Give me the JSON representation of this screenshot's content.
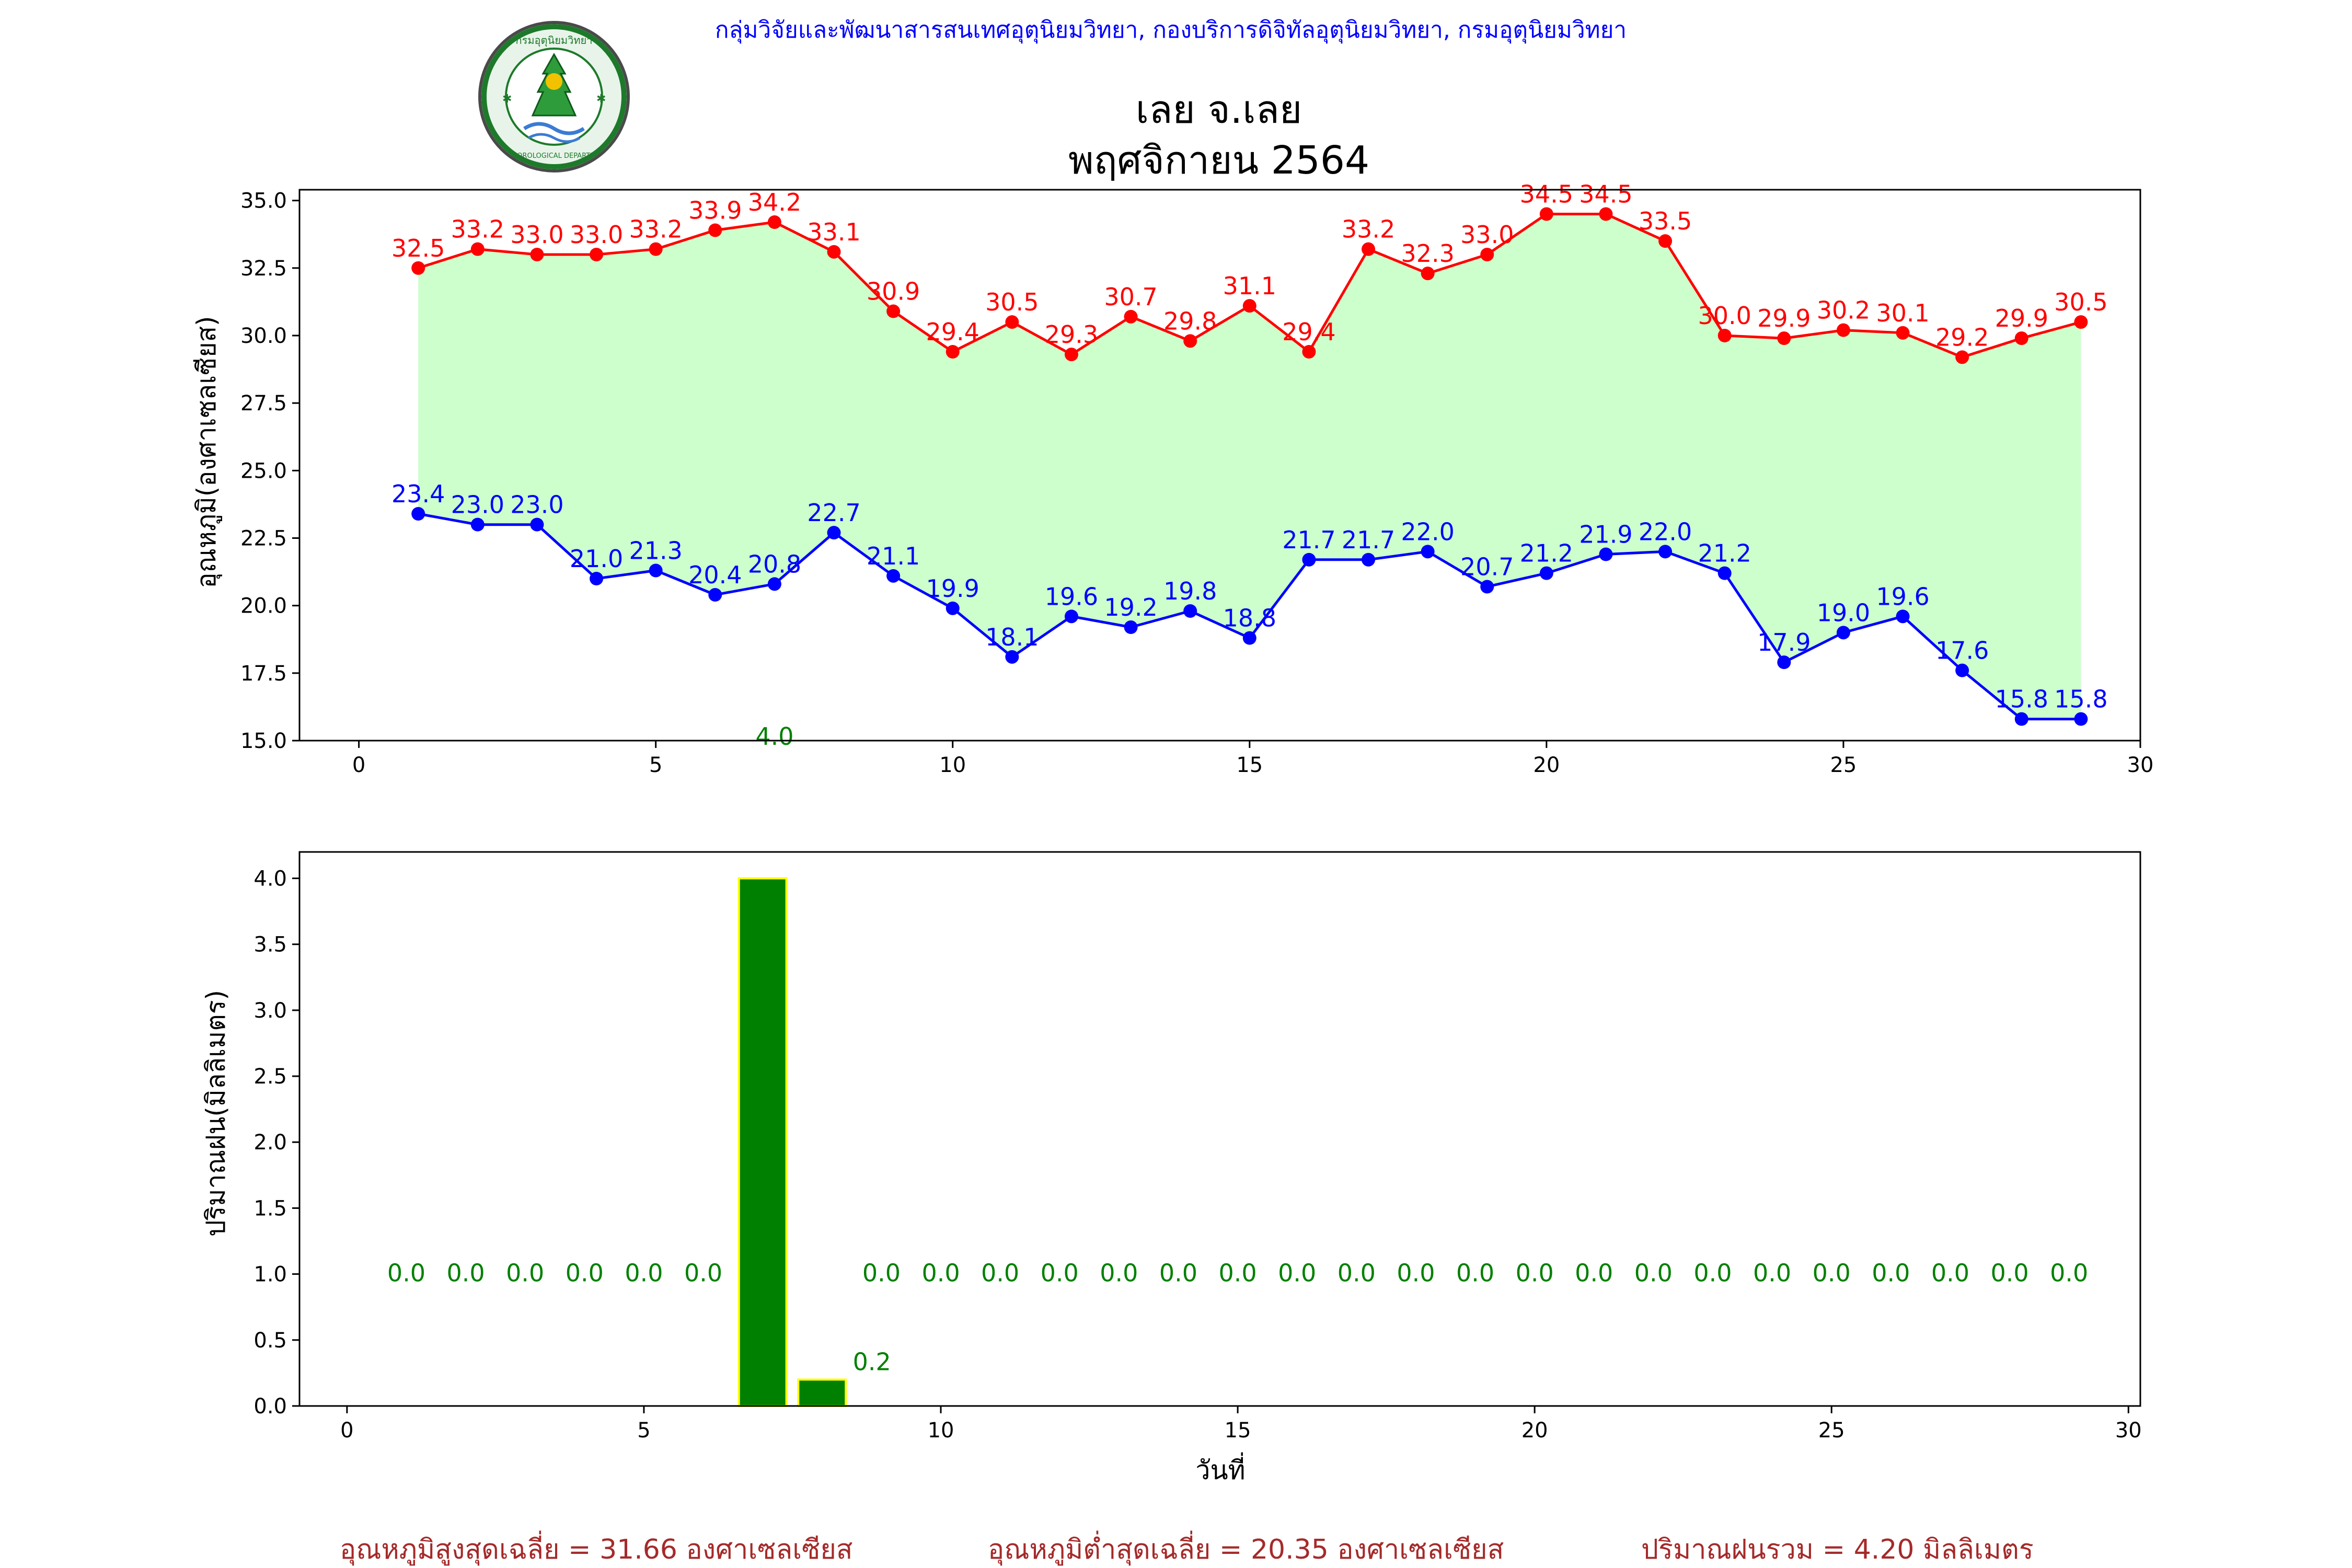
{
  "header": {
    "agency": "กลุ่มวิจัยและพัฒนาสารสนเทศอุตุนิยมวิทยา, กองบริการดิจิทัลอุตุนิยมวิทยา, กรมอุตุนิยมวิทยา",
    "title_line1": "เลย จ.เลย",
    "title_line2": "พฤศจิกายน 2564",
    "logo_text_top": "กรมอุตุนิยมวิทยา",
    "logo_text_bottom": "METEOROLOGICAL DEPARTMENT"
  },
  "colors": {
    "max_temp": "#ff0000",
    "min_temp": "#0000ff",
    "fill": "#ccffcc",
    "rain_bar": "#008000",
    "rain_edge": "#ffff00",
    "rain_label": "#008000",
    "footer_text": "#a52a2a",
    "agency_text": "#0000ff"
  },
  "chart_data": [
    {
      "type": "line",
      "ylabel": "อุณหภูมิ(องศาเซลเซียส)",
      "xlim": [
        -1,
        30
      ],
      "ylim": [
        15,
        35.4
      ],
      "xticks": [
        "0",
        "5",
        "10",
        "15",
        "20",
        "25",
        "30"
      ],
      "yticks": [
        "15.0",
        "17.5",
        "20.0",
        "22.5",
        "25.0",
        "27.5",
        "30.0",
        "32.5",
        "35.0"
      ],
      "x": [
        1,
        2,
        3,
        4,
        5,
        6,
        7,
        8,
        9,
        10,
        11,
        12,
        13,
        14,
        15,
        16,
        17,
        18,
        19,
        20,
        21,
        22,
        23,
        24,
        25,
        26,
        27,
        28,
        29
      ],
      "series": [
        {
          "key": "max",
          "values": [
            32.5,
            33.2,
            33.0,
            33.0,
            33.2,
            33.9,
            34.2,
            33.1,
            30.9,
            29.4,
            30.5,
            29.3,
            30.7,
            29.8,
            31.1,
            29.4,
            33.2,
            32.3,
            33.0,
            34.5,
            34.5,
            33.5,
            30.0,
            29.9,
            30.2,
            30.1,
            29.2,
            29.9,
            30.5
          ],
          "labels": [
            "32.5",
            "33.2",
            "33.0",
            "33.0",
            "33.2",
            "33.9",
            "34.2",
            "33.1",
            "30.9",
            "29.4",
            "30.5",
            "29.3",
            "30.7",
            "29.8",
            "31.1",
            "29.4",
            "33.2",
            "32.3",
            "33.0",
            "34.5",
            "34.5",
            "33.5",
            "30.0",
            "29.9",
            "30.2",
            "30.1",
            "29.2",
            "29.9",
            "30.5"
          ]
        },
        {
          "key": "min",
          "values": [
            23.4,
            23.0,
            23.0,
            21.0,
            21.3,
            20.4,
            20.8,
            22.7,
            21.1,
            19.9,
            18.1,
            19.6,
            19.2,
            19.8,
            18.8,
            21.7,
            21.7,
            22.0,
            20.7,
            21.2,
            21.9,
            22.0,
            21.2,
            17.9,
            19.0,
            19.6,
            17.6,
            15.8,
            15.8
          ],
          "labels": [
            "23.4",
            "23.0",
            "23.0",
            "21.0",
            "21.3",
            "20.4",
            "20.8",
            "22.7",
            "21.1",
            "19.9",
            "18.1",
            "19.6",
            "19.2",
            "19.8",
            "18.8",
            "21.7",
            "21.7",
            "22.0",
            "20.7",
            "21.2",
            "21.9",
            "22.0",
            "21.2",
            "17.9",
            "19.0",
            "19.6",
            "17.6",
            "15.8",
            "15.8"
          ]
        }
      ],
      "stray_label": {
        "x": 7,
        "y": 15.0,
        "text": "4.0"
      }
    },
    {
      "type": "bar",
      "ylabel": "ปริมาณฝน(มิลลิเมตร)",
      "xlabel": "วันที่",
      "xlim": [
        -0.8,
        30.2
      ],
      "ylim": [
        0,
        4.2
      ],
      "xticks": [
        "0",
        "5",
        "10",
        "15",
        "20",
        "25",
        "30"
      ],
      "yticks": [
        "0.0",
        "0.5",
        "1.0",
        "1.5",
        "2.0",
        "2.5",
        "3.0",
        "3.5",
        "4.0"
      ],
      "x": [
        1,
        2,
        3,
        4,
        5,
        6,
        7,
        8,
        9,
        10,
        11,
        12,
        13,
        14,
        15,
        16,
        17,
        18,
        19,
        20,
        21,
        22,
        23,
        24,
        25,
        26,
        27,
        28,
        29
      ],
      "values": [
        0,
        0,
        0,
        0,
        0,
        0,
        4.0,
        0.2,
        0,
        0,
        0,
        0,
        0,
        0,
        0,
        0,
        0,
        0,
        0,
        0,
        0,
        0,
        0,
        0,
        0,
        0,
        0,
        0,
        0
      ],
      "labels": [
        "0.0",
        "0.0",
        "0.0",
        "0.0",
        "0.0",
        "0.0",
        "",
        "0.2",
        "0.0",
        "0.0",
        "0.0",
        "0.0",
        "0.0",
        "0.0",
        "0.0",
        "0.0",
        "0.0",
        "0.0",
        "0.0",
        "0.0",
        "0.0",
        "0.0",
        "0.0",
        "0.0",
        "0.0",
        "0.0",
        "0.0",
        "0.0",
        "0.0"
      ]
    }
  ],
  "footer": {
    "avg_max": "อุณหภูมิสูงสุดเฉลี่ย = 31.66 องศาเซลเซียส",
    "avg_min": "อุณหภูมิต่ำสุดเฉลี่ย = 20.35 องศาเซลเซียส",
    "total_rain": "ปริมาณฝนรวม = 4.20 มิลลิเมตร"
  }
}
